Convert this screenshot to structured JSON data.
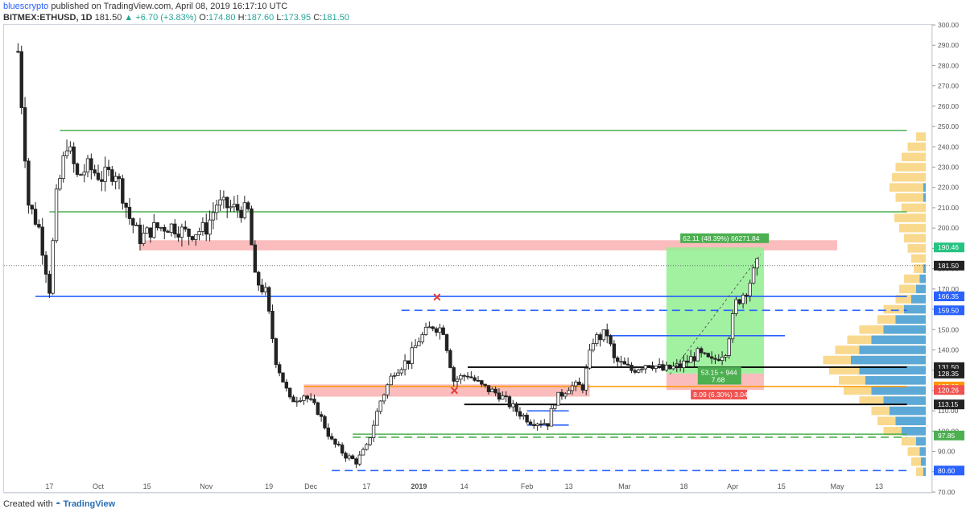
{
  "header": {
    "author": "bluescrypto",
    "published": "published on TradingView.com, April 08, 2019 16:17:10 UTC"
  },
  "symbol_line": {
    "symbol": "BITMEX:ETHUSD, 1D",
    "last": "181.50",
    "arrow": "▲",
    "change": "+6.70 (+3.83%)",
    "o_label": "O:",
    "o": "174.80",
    "h_label": "H:",
    "h": "187.60",
    "l_label": "L:",
    "l": "173.95",
    "c_label": "C:",
    "c": "181.50"
  },
  "footer": {
    "created_with": "Created with",
    "brand": "TradingView"
  },
  "colors": {
    "up": "#26a69a",
    "candle": "#222222",
    "green_line": "#4caf50",
    "blue_line": "#2962ff",
    "orange_line": "#ff9800",
    "red_zone": "#f8a5a5",
    "green_zone": "#90ee90",
    "volume_blue": "#4aa3df",
    "volume_yellow": "#f7d070"
  },
  "chart_data": {
    "type": "candlestick",
    "y_axis": {
      "min": 70,
      "max": 300,
      "step": 10,
      "ticks": [
        "300.00",
        "290.00",
        "280.00",
        "270.00",
        "260.00",
        "250.00",
        "240.00",
        "230.00",
        "220.00",
        "210.00",
        "200.00",
        "190.00",
        "180.00",
        "170.00",
        "160.00",
        "150.00",
        "140.00",
        "130.00",
        "120.00",
        "110.00",
        "100.00",
        "90.00",
        "80.00",
        "70.00"
      ]
    },
    "x_axis": {
      "ticks": [
        {
          "label": "17",
          "date": "2018-09-17"
        },
        {
          "label": "Oct",
          "date": "2018-10-01"
        },
        {
          "label": "15",
          "date": "2018-10-15"
        },
        {
          "label": "Nov",
          "date": "2018-11-01"
        },
        {
          "label": "19",
          "date": "2018-11-19"
        },
        {
          "label": "Dec",
          "date": "2018-12-01"
        },
        {
          "label": "17",
          "date": "2018-12-17"
        },
        {
          "label": "2019",
          "date": "2019-01-01"
        },
        {
          "label": "14",
          "date": "2019-01-14"
        },
        {
          "label": "Feb",
          "date": "2019-02-01"
        },
        {
          "label": "13",
          "date": "2019-02-13"
        },
        {
          "label": "Mar",
          "date": "2019-03-01"
        },
        {
          "label": "18",
          "date": "2019-03-18"
        },
        {
          "label": "Apr",
          "date": "2019-04-01"
        },
        {
          "label": "15",
          "date": "2019-04-15"
        },
        {
          "label": "May",
          "date": "2019-05-01"
        },
        {
          "label": "13",
          "date": "2019-05-13"
        }
      ]
    },
    "price_markers": [
      {
        "value": "190.46",
        "color": "#26c281"
      },
      {
        "value": "181.50",
        "color": "#222222"
      },
      {
        "value": "166.35",
        "color": "#2962ff"
      },
      {
        "value": "159.50",
        "color": "#2962ff"
      },
      {
        "value": "131.50",
        "color": "#222222"
      },
      {
        "value": "128.35",
        "color": "#222222"
      },
      {
        "value": "122.00",
        "color": "#ff9800"
      },
      {
        "value": "120.26",
        "color": "#ef5350"
      },
      {
        "value": "113.15",
        "color": "#222222"
      },
      {
        "value": "97.85",
        "color": "#4caf50"
      },
      {
        "value": "80.60",
        "color": "#2962ff"
      }
    ],
    "annotations": {
      "target": "62.11 (48.39%) 66271.84",
      "entry": "53.15 ÷ 944",
      "entry_ratio": "7.68",
      "stop": "8.09 (6.30%) 3.04"
    },
    "candle_path": [
      [
        "2018-09-08",
        287
      ],
      [
        "2018-09-11",
        212
      ],
      [
        "2018-09-14",
        200
      ],
      [
        "2018-09-17",
        170
      ],
      [
        "2018-09-19",
        215
      ],
      [
        "2018-09-22",
        242
      ],
      [
        "2018-09-25",
        225
      ],
      [
        "2018-09-28",
        230
      ],
      [
        "2018-10-02",
        225
      ],
      [
        "2018-10-06",
        228
      ],
      [
        "2018-10-10",
        205
      ],
      [
        "2018-10-13",
        195
      ],
      [
        "2018-10-17",
        200
      ],
      [
        "2018-10-22",
        201
      ],
      [
        "2018-10-27",
        197
      ],
      [
        "2018-11-01",
        200
      ],
      [
        "2018-11-04",
        212
      ],
      [
        "2018-11-08",
        210
      ],
      [
        "2018-11-13",
        208
      ],
      [
        "2018-11-15",
        175
      ],
      [
        "2018-11-18",
        168
      ],
      [
        "2018-11-21",
        135
      ],
      [
        "2018-11-25",
        115
      ],
      [
        "2018-11-29",
        118
      ],
      [
        "2018-12-03",
        110
      ],
      [
        "2018-12-07",
        95
      ],
      [
        "2018-12-11",
        88
      ],
      [
        "2018-12-14",
        85
      ],
      [
        "2018-12-17",
        92
      ],
      [
        "2018-12-21",
        115
      ],
      [
        "2018-12-25",
        130
      ],
      [
        "2018-12-29",
        135
      ],
      [
        "2019-01-01",
        145
      ],
      [
        "2019-01-05",
        152
      ],
      [
        "2019-01-08",
        150
      ],
      [
        "2019-01-11",
        125
      ],
      [
        "2019-01-15",
        128
      ],
      [
        "2019-01-19",
        122
      ],
      [
        "2019-01-24",
        118
      ],
      [
        "2019-01-29",
        110
      ],
      [
        "2019-02-02",
        105
      ],
      [
        "2019-02-07",
        104
      ],
      [
        "2019-02-09",
        115
      ],
      [
        "2019-02-13",
        122
      ],
      [
        "2019-02-17",
        122
      ],
      [
        "2019-02-20",
        145
      ],
      [
        "2019-02-24",
        148
      ],
      [
        "2019-02-26",
        135
      ],
      [
        "2019-03-03",
        130
      ],
      [
        "2019-03-08",
        134
      ],
      [
        "2019-03-12",
        130
      ],
      [
        "2019-03-17",
        132
      ],
      [
        "2019-03-22",
        138
      ],
      [
        "2019-03-26",
        134
      ],
      [
        "2019-03-30",
        140
      ],
      [
        "2019-04-02",
        163
      ],
      [
        "2019-04-05",
        170
      ],
      [
        "2019-04-08",
        181.5
      ]
    ],
    "horizontal_levels": [
      {
        "price": 248,
        "from": "2018-09-20",
        "to": "2019-05-21",
        "color": "#4caf50",
        "style": "solid"
      },
      {
        "price": 208,
        "from": "2018-09-17",
        "to": "2019-05-21",
        "color": "#4caf50",
        "style": "solid"
      },
      {
        "price": 166.35,
        "from": "2018-09-13",
        "to": "2019-05-21",
        "color": "#2962ff",
        "style": "solid"
      },
      {
        "price": 159.5,
        "from": "2018-12-27",
        "to": "2019-05-21",
        "color": "#2962ff",
        "style": "dashed"
      },
      {
        "price": 147,
        "from": "2019-02-24",
        "to": "2019-04-16",
        "color": "#2962ff",
        "style": "solid"
      },
      {
        "price": 131.5,
        "from": "2019-01-15",
        "to": "2019-05-21",
        "color": "#000000",
        "style": "solid"
      },
      {
        "price": 122,
        "from": "2018-11-29",
        "to": "2019-05-21",
        "color": "#ff9800",
        "style": "solid"
      },
      {
        "price": 113.15,
        "from": "2019-01-14",
        "to": "2019-05-21",
        "color": "#000000",
        "style": "solid"
      },
      {
        "price": 98.5,
        "from": "2018-12-13",
        "to": "2019-05-21",
        "color": "#4caf50",
        "style": "solid"
      },
      {
        "price": 97.0,
        "from": "2018-12-13",
        "to": "2019-05-21",
        "color": "#4caf50",
        "style": "dashed"
      },
      {
        "price": 80.6,
        "from": "2018-12-07",
        "to": "2019-05-21",
        "color": "#2962ff",
        "style": "dashed"
      },
      {
        "price": 110,
        "from": "2019-02-01",
        "to": "2019-02-13",
        "color": "#2962ff",
        "style": "solid"
      },
      {
        "price": 103,
        "from": "2019-02-01",
        "to": "2019-02-13",
        "color": "#2962ff",
        "style": "solid"
      }
    ],
    "zones": [
      {
        "name": "resistance",
        "from": "2018-10-13",
        "to": "2019-05-01",
        "top": 194,
        "bottom": 189,
        "color": "#f8a5a5"
      },
      {
        "name": "support",
        "from": "2018-11-29",
        "to": "2019-02-19",
        "top": 123,
        "bottom": 117,
        "color": "#f8a5a5"
      },
      {
        "name": "position-target",
        "from": "2019-03-13",
        "to": "2019-04-10",
        "top": 190.46,
        "bottom": 128.35,
        "color": "#90ee90"
      },
      {
        "name": "position-stop",
        "from": "2019-03-13",
        "to": "2019-04-10",
        "top": 128.35,
        "bottom": 120.26,
        "color": "#f8a5a5"
      }
    ],
    "cross_markers": [
      {
        "date": "2019-01-06",
        "price": 166
      },
      {
        "date": "2019-01-11",
        "price": 120
      }
    ],
    "volume_profile": [
      [
        245,
        0.08,
        0.0
      ],
      [
        240,
        0.15,
        0.0
      ],
      [
        235,
        0.2,
        0.0
      ],
      [
        230,
        0.25,
        0.0
      ],
      [
        225,
        0.28,
        0.0
      ],
      [
        220,
        0.3,
        0.02
      ],
      [
        215,
        0.25,
        0.02
      ],
      [
        210,
        0.2,
        0.0
      ],
      [
        205,
        0.26,
        0.0
      ],
      [
        200,
        0.22,
        0.0
      ],
      [
        195,
        0.18,
        0.0
      ],
      [
        190,
        0.15,
        0.0
      ],
      [
        185,
        0.12,
        0.0
      ],
      [
        180,
        0.1,
        0.02
      ],
      [
        175,
        0.18,
        0.05
      ],
      [
        170,
        0.22,
        0.08
      ],
      [
        165,
        0.25,
        0.12
      ],
      [
        160,
        0.35,
        0.18
      ],
      [
        155,
        0.4,
        0.25
      ],
      [
        150,
        0.55,
        0.35
      ],
      [
        145,
        0.65,
        0.45
      ],
      [
        140,
        0.75,
        0.55
      ],
      [
        135,
        0.85,
        0.62
      ],
      [
        130,
        0.8,
        0.55
      ],
      [
        125,
        0.72,
        0.5
      ],
      [
        120,
        0.68,
        0.45
      ],
      [
        115,
        0.55,
        0.35
      ],
      [
        110,
        0.45,
        0.3
      ],
      [
        105,
        0.4,
        0.25
      ],
      [
        100,
        0.35,
        0.2
      ],
      [
        95,
        0.2,
        0.08
      ],
      [
        90,
        0.15,
        0.05
      ],
      [
        85,
        0.12,
        0.04
      ],
      [
        80,
        0.08,
        0.02
      ]
    ]
  }
}
